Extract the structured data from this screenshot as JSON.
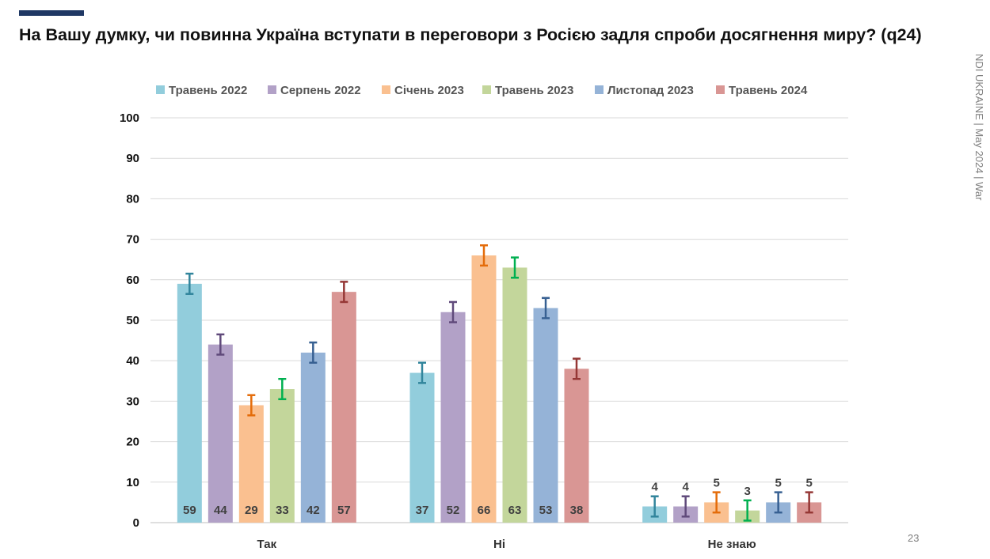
{
  "title": "На Вашу думку, чи повинна Україна вступати в переговори з Росією задля спроби досягнення миру? (q24)",
  "side_text": "NDI UKRAINE | May 2024 | War",
  "page_number": "23",
  "colors": {
    "accent": "#1f3864",
    "series_fill": [
      "#92cddc",
      "#b2a1c7",
      "#fac090",
      "#c3d69b",
      "#95b3d7",
      "#d99694"
    ],
    "series_error": [
      "#31859c",
      "#604a7b",
      "#e46c0a",
      "#00b050",
      "#376092",
      "#953735"
    ]
  },
  "chart_data": {
    "type": "bar",
    "categories": [
      "Так",
      "Ні",
      "Не знаю"
    ],
    "series": [
      {
        "name": "Травень 2022",
        "values": [
          59,
          37,
          4
        ]
      },
      {
        "name": "Серпень 2022",
        "values": [
          44,
          52,
          4
        ]
      },
      {
        "name": "Січень 2023",
        "values": [
          29,
          66,
          5
        ]
      },
      {
        "name": "Травень 2023",
        "values": [
          33,
          63,
          3
        ]
      },
      {
        "name": "Листопад 2023",
        "values": [
          42,
          53,
          5
        ]
      },
      {
        "name": "Травень 2024",
        "values": [
          57,
          38,
          5
        ]
      }
    ],
    "error_margin": 2.5,
    "ylim": [
      0,
      100
    ],
    "yticks": [
      "0",
      "10",
      "20",
      "30",
      "40",
      "50",
      "60",
      "70",
      "80",
      "90",
      "100"
    ],
    "grid": true,
    "legend_position": "top",
    "xlabel": "",
    "ylabel": ""
  }
}
